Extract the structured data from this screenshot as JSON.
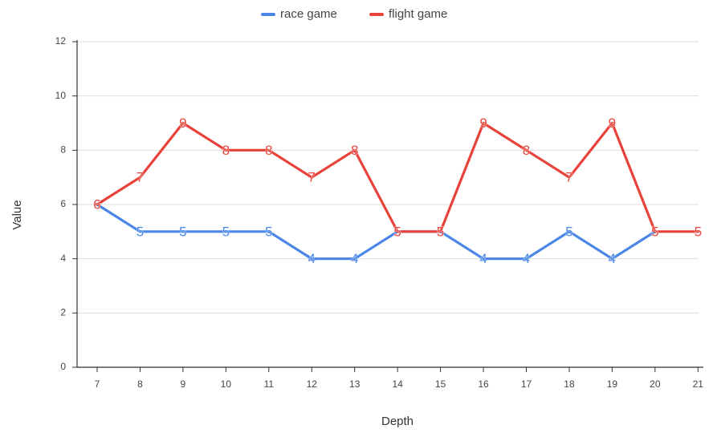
{
  "chart_data": {
    "type": "line",
    "title": "",
    "xlabel": "Depth",
    "ylabel": "Value",
    "x": [
      7,
      8,
      9,
      10,
      11,
      12,
      13,
      14,
      15,
      16,
      17,
      18,
      19,
      20,
      21
    ],
    "ylim": [
      0,
      12
    ],
    "yticks": [
      0,
      2,
      4,
      6,
      8,
      10,
      12
    ],
    "grid": true,
    "legend_position": "top",
    "series": [
      {
        "name": "race game",
        "color": "#4a86e8",
        "values": [
          6,
          5,
          5,
          5,
          5,
          4,
          4,
          5,
          5,
          4,
          4,
          5,
          4,
          5,
          null
        ]
      },
      {
        "name": "flight game",
        "color": "#e8433a",
        "values": [
          6,
          7,
          9,
          8,
          8,
          7,
          8,
          5,
          5,
          9,
          8,
          7,
          9,
          5,
          5
        ]
      }
    ]
  }
}
